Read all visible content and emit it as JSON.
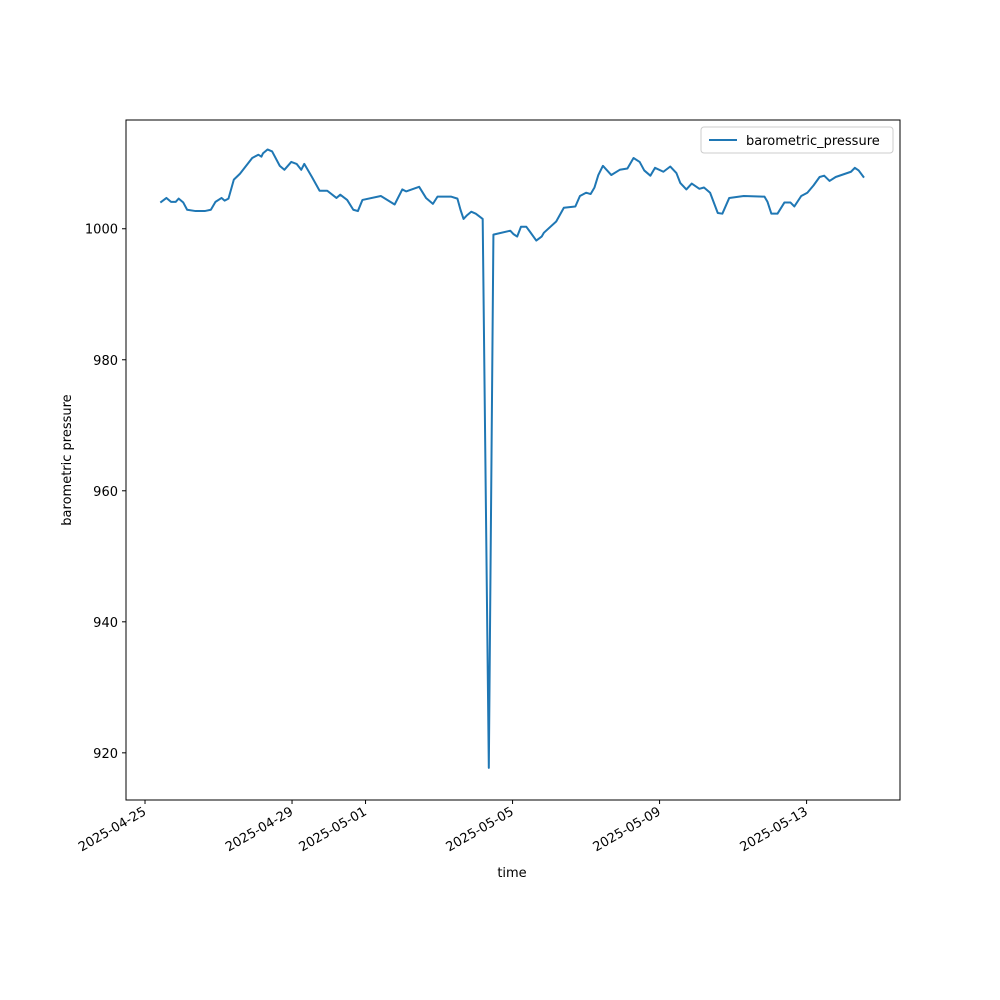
{
  "chart_data": {
    "type": "line",
    "xlabel": "time",
    "ylabel": "barometric pressure",
    "legend": "upper right",
    "x": [
      "2025-04-25 10:00",
      "2025-04-25 14:00",
      "2025-04-25 17:00",
      "2025-04-25 20:00",
      "2025-04-25 22:00",
      "2025-04-26 01:00",
      "2025-04-26 03:30",
      "2025-04-26 09:00",
      "2025-04-26 15:00",
      "2025-04-26 19:00",
      "2025-04-26 22:00",
      "2025-04-27 02:00",
      "2025-04-27 04:00",
      "2025-04-27 06:30",
      "2025-04-27 10:00",
      "2025-04-27 14:00",
      "2025-04-27 22:00",
      "2025-04-28 02:00",
      "2025-04-28 04:00",
      "2025-04-28 05:00",
      "2025-04-28 08:00",
      "2025-04-28 11:00",
      "2025-04-28 16:00",
      "2025-04-28 19:00",
      "2025-04-28 23:30",
      "2025-04-29 03:00",
      "2025-04-29 06:00",
      "2025-04-29 08:00",
      "2025-04-29 13:00",
      "2025-04-29 18:00",
      "2025-04-29 23:00",
      "2025-04-30 05:00",
      "2025-04-30 07:30",
      "2025-04-30 12:00",
      "2025-04-30 16:00",
      "2025-04-30 19:00",
      "2025-04-30 22:00",
      "2025-05-01 10:00",
      "2025-05-01 19:00",
      "2025-05-02 00:00",
      "2025-05-02 02:30",
      "2025-05-02 11:00",
      "2025-05-02 15:30",
      "2025-05-02 20:00",
      "2025-05-02 23:00",
      "2025-05-03 08:00",
      "2025-05-03 12:00",
      "2025-05-03 14:00",
      "2025-05-03 16:00",
      "2025-05-03 18:00",
      "2025-05-03 21:00",
      "2025-05-04 00:00",
      "2025-05-04 04:30",
      "2025-05-04 08:30",
      "2025-05-04 11:30",
      "2025-05-04 22:30",
      "2025-05-05 00:30",
      "2025-05-05 03:00",
      "2025-05-05 05:30",
      "2025-05-05 09:00",
      "2025-05-05 11:30",
      "2025-05-05 15:30",
      "2025-05-05 19:00",
      "2025-05-05 20:30",
      "2025-05-06 04:30",
      "2025-05-06 09:30",
      "2025-05-06 17:00",
      "2025-05-06 20:00",
      "2025-05-07 00:00",
      "2025-05-07 03:00",
      "2025-05-07 05:30",
      "2025-05-07 08:00",
      "2025-05-07 11:00",
      "2025-05-07 16:30",
      "2025-05-07 22:00",
      "2025-05-08 03:00",
      "2025-05-08 07:00",
      "2025-05-08 11:00",
      "2025-05-08 14:00",
      "2025-05-08 18:00",
      "2025-05-08 21:00",
      "2025-05-09 02:30",
      "2025-05-09 07:00",
      "2025-05-09 11:00",
      "2025-05-09 13:30",
      "2025-05-09 17:30",
      "2025-05-09 21:00",
      "2025-05-10 02:00",
      "2025-05-10 05:00",
      "2025-05-10 09:00",
      "2025-05-10 14:00",
      "2025-05-10 17:00",
      "2025-05-10 21:30",
      "2025-05-11 04:00",
      "2025-05-11 07:00",
      "2025-05-11 20:30",
      "2025-05-11 22:30",
      "2025-05-12 01:00",
      "2025-05-12 05:00",
      "2025-05-12 09:30",
      "2025-05-12 13:30",
      "2025-05-12 16:00",
      "2025-05-12 20:30",
      "2025-05-13 00:30",
      "2025-05-13 04:30",
      "2025-05-13 08:30",
      "2025-05-13 11:30",
      "2025-05-13 15:00",
      "2025-05-13 19:00",
      "2025-05-14 05:00",
      "2025-05-14 07:30",
      "2025-05-14 10:00",
      "2025-05-14 13:30"
    ],
    "series": [
      {
        "name": "barometric_pressure",
        "color": "#1f77b4",
        "values": [
          1004.0,
          1004.7,
          1004.1,
          1004.1,
          1004.6,
          1004.0,
          1002.9,
          1002.7,
          1002.7,
          1002.9,
          1004.1,
          1004.7,
          1004.3,
          1004.6,
          1007.5,
          1008.4,
          1010.8,
          1011.3,
          1011.0,
          1011.5,
          1012.1,
          1011.8,
          1009.6,
          1009.0,
          1010.2,
          1009.9,
          1009.0,
          1009.9,
          1007.9,
          1005.8,
          1005.8,
          1004.7,
          1005.2,
          1004.4,
          1002.9,
          1002.7,
          1004.4,
          1005.0,
          1003.7,
          1006.0,
          1005.7,
          1006.4,
          1004.7,
          1003.8,
          1004.9,
          1004.9,
          1004.6,
          1002.9,
          1001.5,
          1002.0,
          1002.6,
          1002.3,
          1001.5,
          917.7,
          999.1,
          999.7,
          999.2,
          998.8,
          1000.3,
          1000.3,
          999.5,
          998.2,
          998.8,
          999.4,
          1001.1,
          1003.2,
          1003.4,
          1005.0,
          1005.5,
          1005.3,
          1006.3,
          1008.2,
          1009.6,
          1008.2,
          1009.0,
          1009.2,
          1010.8,
          1010.2,
          1008.9,
          1008.1,
          1009.3,
          1008.7,
          1009.5,
          1008.5,
          1007.0,
          1006.0,
          1006.9,
          1006.1,
          1006.3,
          1005.5,
          1002.4,
          1002.3,
          1004.7,
          1004.9,
          1005.0,
          1004.9,
          1004.1,
          1002.3,
          1002.3,
          1004.0,
          1004.0,
          1003.4,
          1005.0,
          1005.5,
          1006.6,
          1007.9,
          1008.1,
          1007.3,
          1007.9,
          1008.7,
          1009.3,
          1008.9,
          1007.8
        ]
      }
    ],
    "xlim": [
      "2025-04-24 11:35",
      "2025-05-15 13:00"
    ],
    "xticks": [
      "2025-04-25",
      "2025-04-29",
      "2025-05-01",
      "2025-05-05",
      "2025-05-09",
      "2025-05-13"
    ],
    "ylim": [
      912.8,
      1016.6
    ],
    "yticks": [
      920,
      940,
      960,
      980,
      1000
    ]
  }
}
